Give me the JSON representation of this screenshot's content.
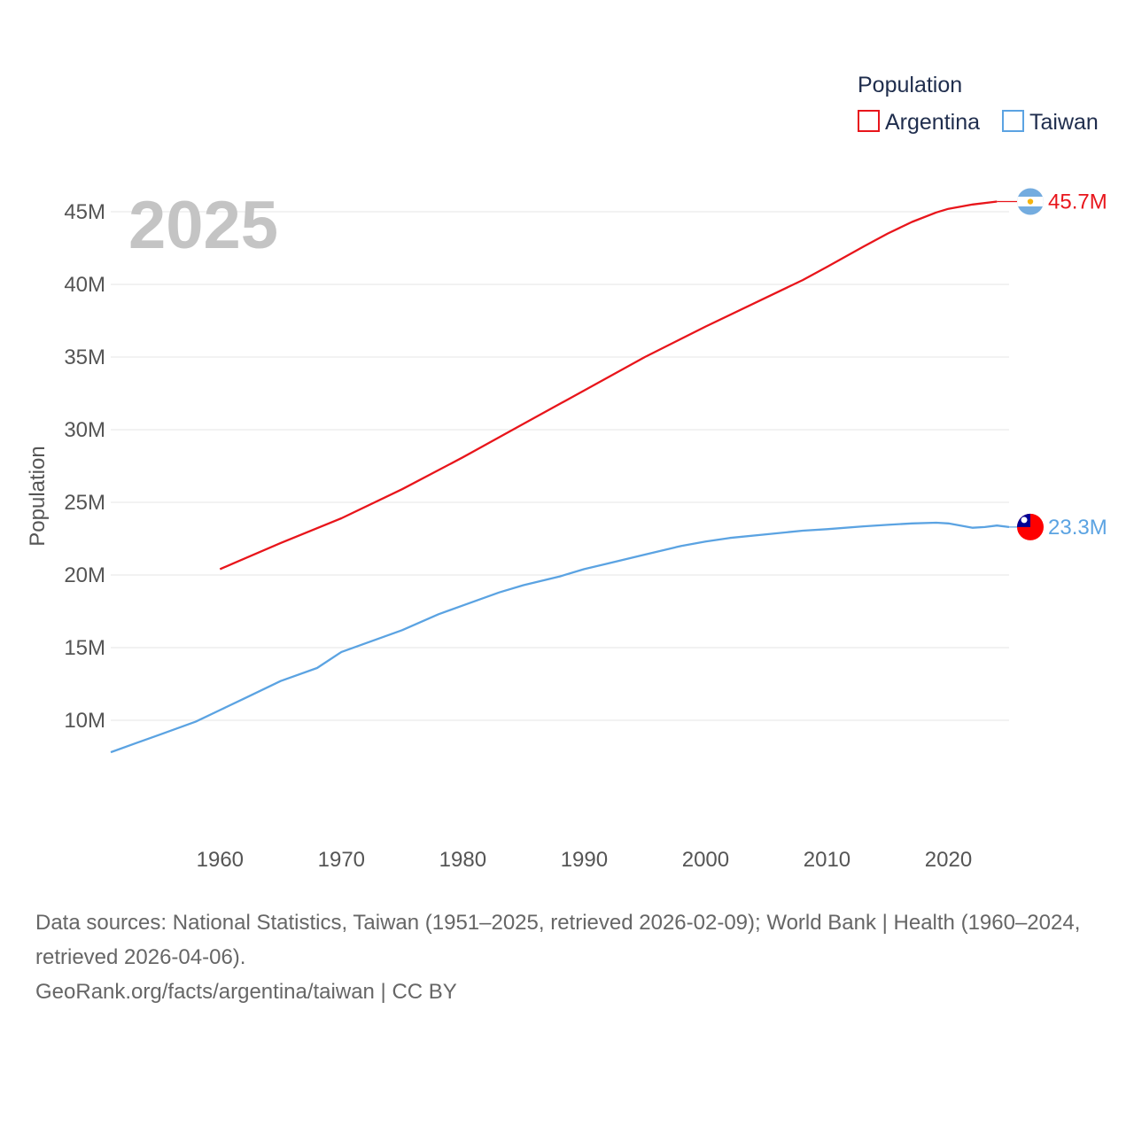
{
  "chart_data": {
    "type": "line",
    "title": "",
    "year_label": "2025",
    "xlabel": "",
    "ylabel": "Population",
    "xlim": [
      1951,
      2025
    ],
    "ylim": [
      5000000,
      47500000
    ],
    "x_ticks": [
      1960,
      1970,
      1980,
      1990,
      2000,
      2010,
      2020
    ],
    "x_tick_labels": [
      "1960",
      "1970",
      "1980",
      "1990",
      "2000",
      "2010",
      "2020"
    ],
    "y_ticks": [
      10000000,
      15000000,
      20000000,
      25000000,
      30000000,
      35000000,
      40000000,
      45000000
    ],
    "y_tick_labels": [
      "10M",
      "15M",
      "20M",
      "25M",
      "30M",
      "35M",
      "40M",
      "45M"
    ],
    "grid": true,
    "legend": {
      "title": "Population",
      "position": "top-right"
    },
    "series": [
      {
        "name": "Argentina",
        "color": "#e8151b",
        "end_label": "45.7M",
        "flag": "argentina-flag",
        "x": [
          1960,
          1965,
          1970,
          1975,
          1980,
          1985,
          1990,
          1995,
          2000,
          2005,
          2008,
          2010,
          2013,
          2015,
          2017,
          2019,
          2020,
          2022,
          2024
        ],
        "y": [
          20400000,
          22200000,
          23900000,
          25900000,
          28100000,
          30400000,
          32700000,
          35000000,
          37100000,
          39100000,
          40300000,
          41200000,
          42600000,
          43500000,
          44300000,
          44950000,
          45200000,
          45500000,
          45700000
        ]
      },
      {
        "name": "Taiwan",
        "color": "#5ba3e2",
        "end_label": "23.3M",
        "flag": "taiwan-flag",
        "x": [
          1951,
          1953,
          1955,
          1958,
          1960,
          1962,
          1965,
          1968,
          1970,
          1972,
          1975,
          1978,
          1980,
          1983,
          1985,
          1988,
          1990,
          1992,
          1995,
          1998,
          2000,
          2002,
          2005,
          2008,
          2010,
          2013,
          2015,
          2017,
          2019,
          2020,
          2021,
          2022,
          2023,
          2024,
          2025
        ],
        "y": [
          7800000,
          8400000,
          9000000,
          9900000,
          10700000,
          11500000,
          12700000,
          13600000,
          14700000,
          15300000,
          16200000,
          17300000,
          17900000,
          18800000,
          19300000,
          19900000,
          20400000,
          20800000,
          21400000,
          22000000,
          22300000,
          22550000,
          22800000,
          23050000,
          23150000,
          23350000,
          23450000,
          23550000,
          23600000,
          23550000,
          23400000,
          23250000,
          23300000,
          23400000,
          23300000
        ]
      }
    ]
  },
  "footer": {
    "sources": "Data sources: National Statistics, Taiwan (1951–2025, retrieved 2026-02-09); World Bank | Health (1960–2024, retrieved 2026-04-06).",
    "credit": "GeoRank.org/facts/argentina/taiwan | CC BY"
  }
}
